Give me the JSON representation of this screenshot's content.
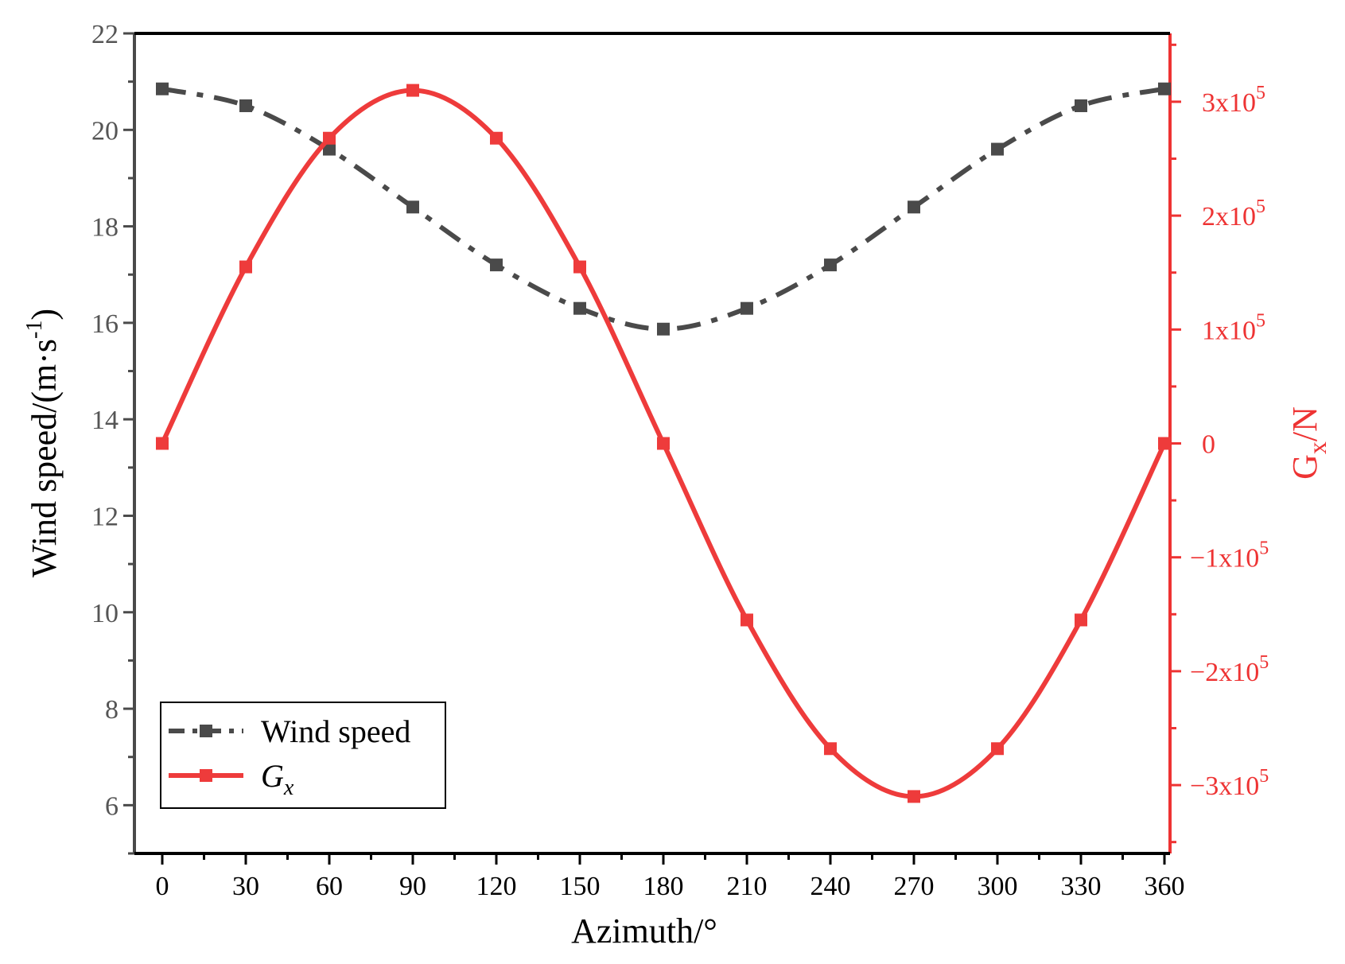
{
  "chart_data": {
    "type": "line",
    "title": "",
    "xlabel": "Azimuth/°",
    "ylabel_left": "Wind speed/(m·s",
    "ylabel_left_sup": "-1",
    "ylabel_left_close": ")",
    "ylabel_right_base": "G",
    "ylabel_right_sub": "x",
    "ylabel_right_unit": "/N",
    "xlim": [
      -10,
      362
    ],
    "ylim_left": [
      5,
      22
    ],
    "ylim_right": [
      -360000,
      360000
    ],
    "x": [
      0,
      30,
      60,
      90,
      120,
      150,
      180,
      210,
      240,
      270,
      300,
      330,
      360
    ],
    "x_ticks": [
      "0",
      "30",
      "60",
      "90",
      "120",
      "150",
      "180",
      "210",
      "240",
      "270",
      "300",
      "330",
      "360"
    ],
    "left_ticks": [
      "6",
      "8",
      "10",
      "12",
      "14",
      "16",
      "18",
      "20",
      "22"
    ],
    "left_tick_values": [
      6,
      8,
      10,
      12,
      14,
      16,
      18,
      20,
      22
    ],
    "right_ticks": [
      {
        "value": 300000,
        "neg": "",
        "mant": "3x10",
        "exp": "5"
      },
      {
        "value": 200000,
        "neg": "",
        "mant": "2x10",
        "exp": "5"
      },
      {
        "value": 100000,
        "neg": "",
        "mant": "1x10",
        "exp": "5"
      },
      {
        "value": 0,
        "neg": "",
        "mant": "0",
        "exp": ""
      },
      {
        "value": -100000,
        "neg": "−",
        "mant": "1x10",
        "exp": "5"
      },
      {
        "value": -200000,
        "neg": "−",
        "mant": "2x10",
        "exp": "5"
      },
      {
        "value": -300000,
        "neg": "−",
        "mant": "3x10",
        "exp": "5"
      }
    ],
    "series": [
      {
        "name": "Wind speed",
        "axis": "left",
        "color": "#4a4a4a",
        "style": "dash-dot",
        "values": [
          20.85,
          20.5,
          19.6,
          18.4,
          17.2,
          16.3,
          15.87,
          16.3,
          17.2,
          18.4,
          19.6,
          20.5,
          20.85
        ]
      },
      {
        "name": "G",
        "name_sub": "x",
        "axis": "right",
        "color": "#ee3b3b",
        "style": "solid",
        "values": [
          0,
          155000,
          268000,
          310000,
          268000,
          155000,
          0,
          -155000,
          -268000,
          -310000,
          -268000,
          -155000,
          0
        ]
      }
    ],
    "legend_position": "bottom-left"
  }
}
